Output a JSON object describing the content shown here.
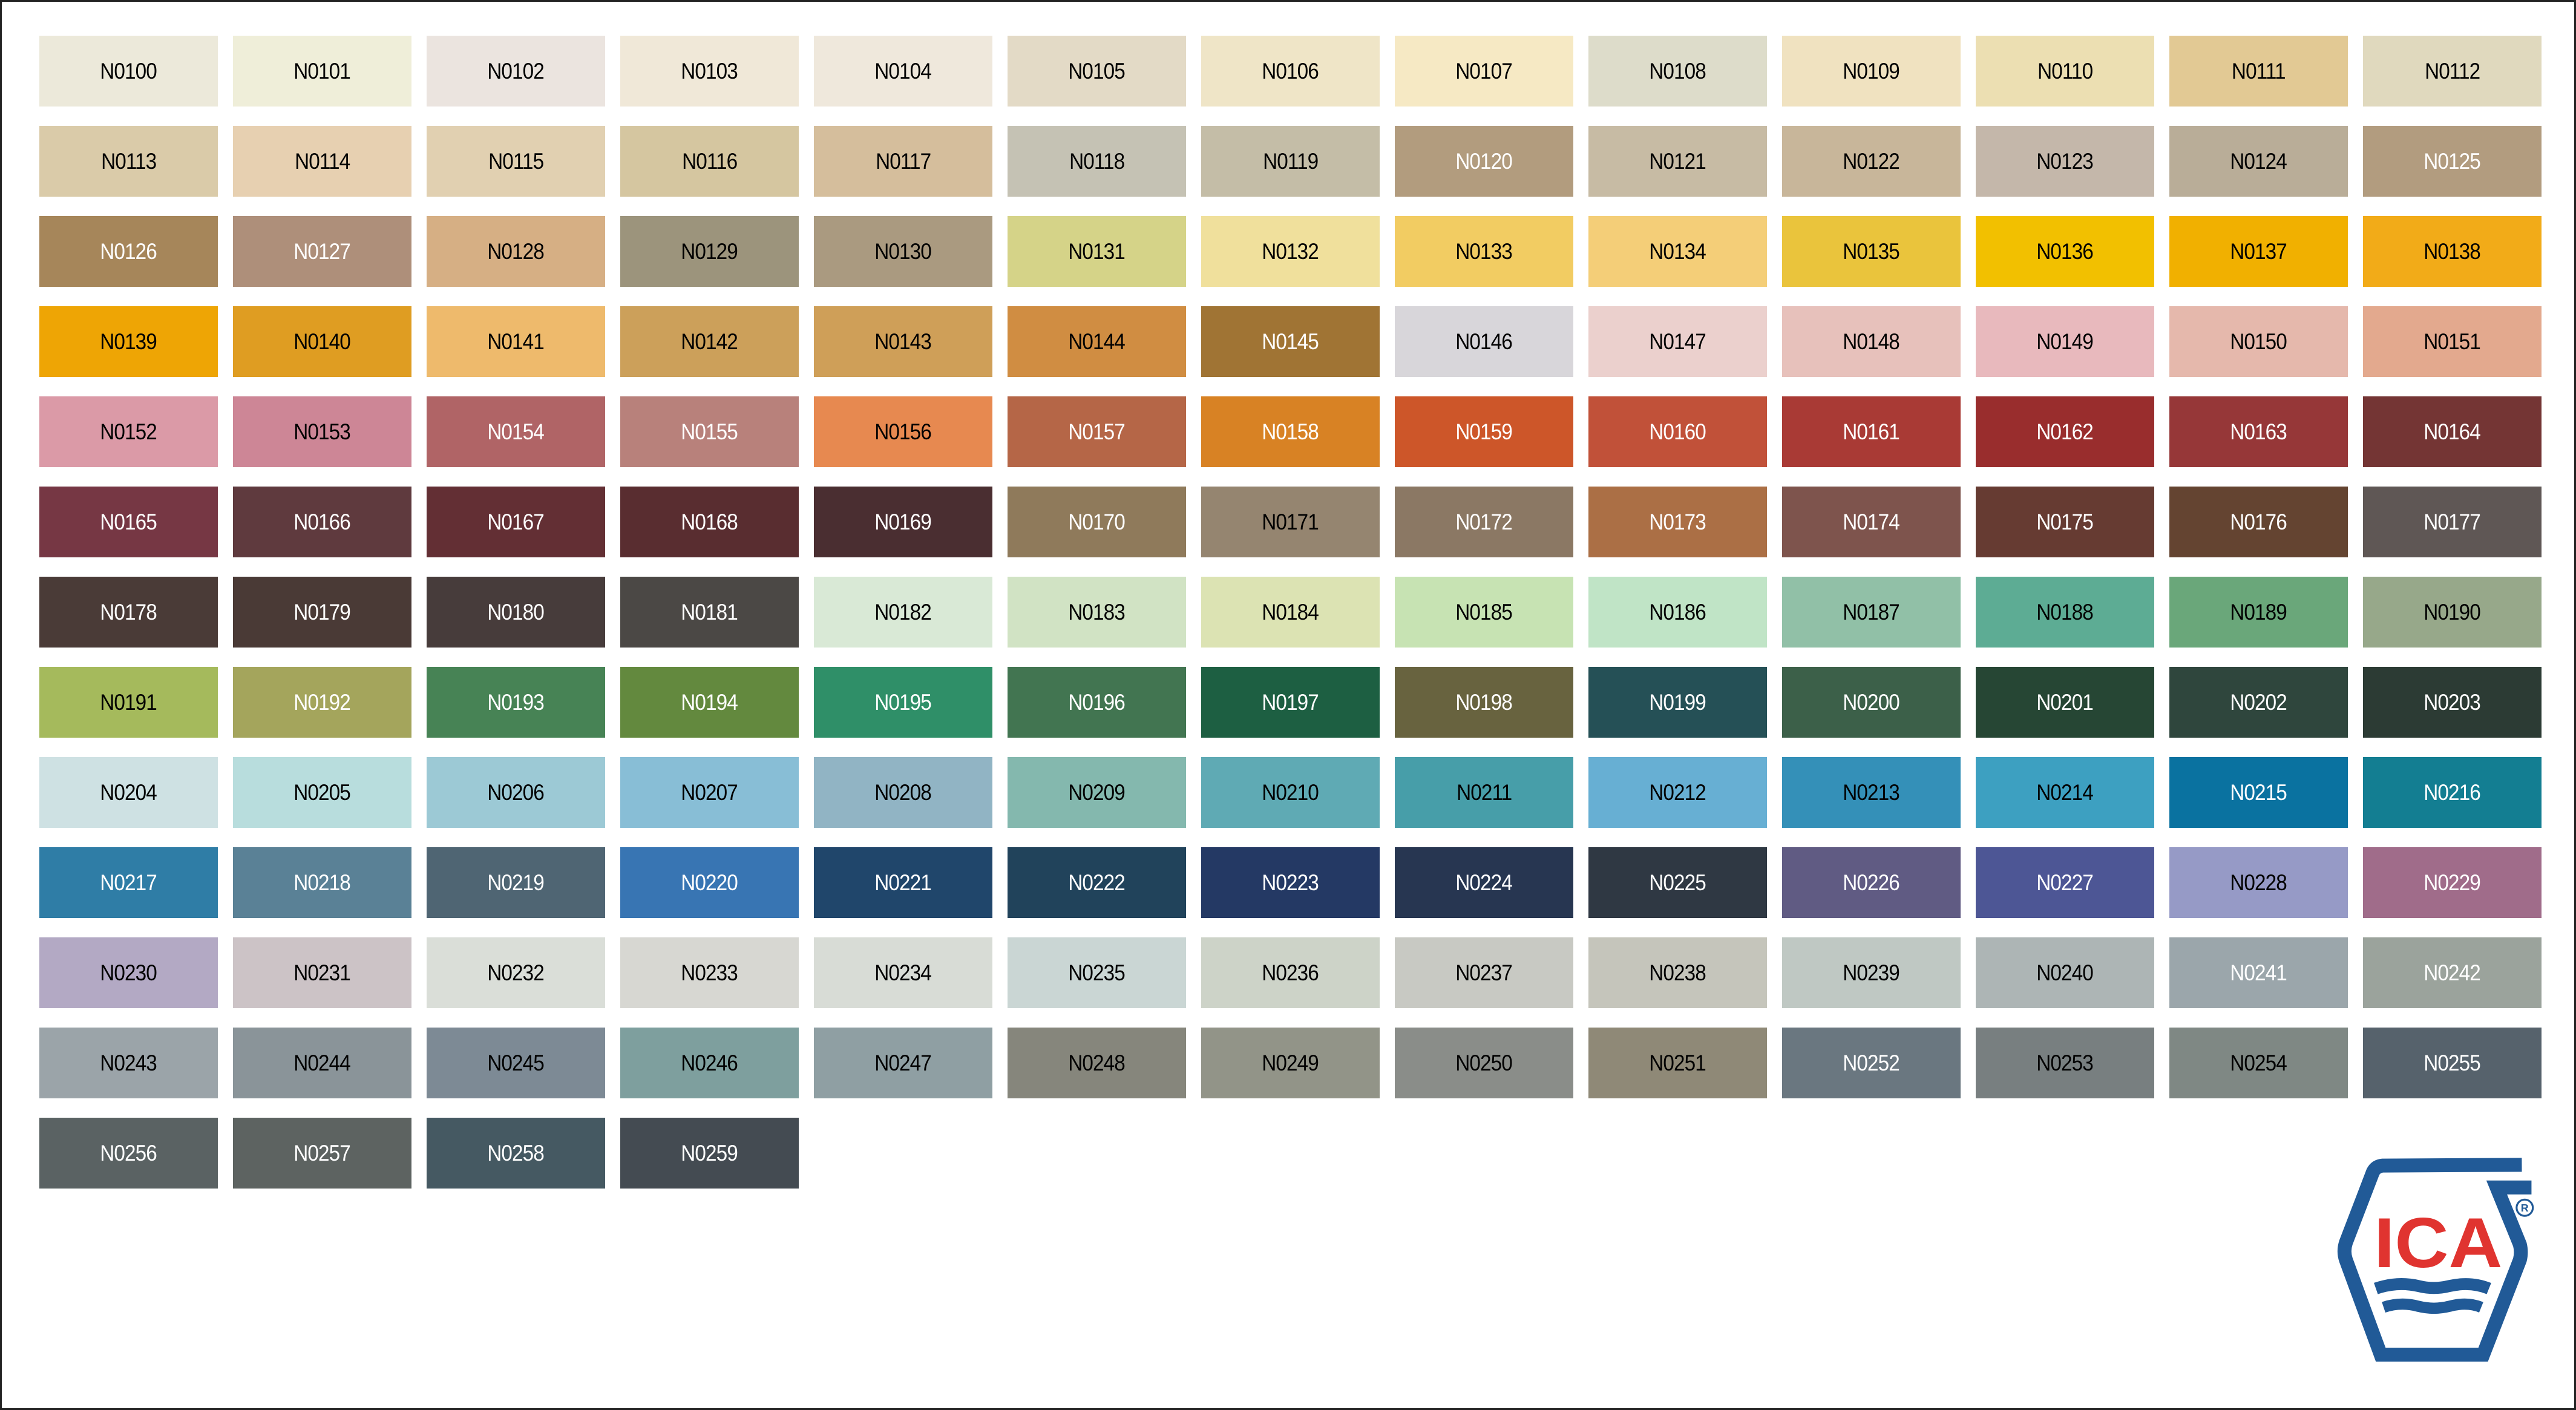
{
  "logo": {
    "text": "ICA",
    "mark": "®",
    "blue": "#215A97",
    "red": "#E03430"
  },
  "swatches": [
    {
      "code": "N0100",
      "color": "#ECE9DA",
      "label": "dark"
    },
    {
      "code": "N0101",
      "color": "#EFEED9",
      "label": "dark"
    },
    {
      "code": "N0102",
      "color": "#EBE4DF",
      "label": "dark"
    },
    {
      "code": "N0103",
      "color": "#F0E8D8",
      "label": "dark"
    },
    {
      "code": "N0104",
      "color": "#EFE8DC",
      "label": "dark"
    },
    {
      "code": "N0105",
      "color": "#E3DAC6",
      "label": "dark"
    },
    {
      "code": "N0106",
      "color": "#EFE5C7",
      "label": "dark"
    },
    {
      "code": "N0107",
      "color": "#F6E9C4",
      "label": "dark"
    },
    {
      "code": "N0108",
      "color": "#DDDCCA",
      "label": "dark"
    },
    {
      "code": "N0109",
      "color": "#F0E2C0",
      "label": "dark"
    },
    {
      "code": "N0110",
      "color": "#ECDFB2",
      "label": "dark"
    },
    {
      "code": "N0111",
      "color": "#E2C994",
      "label": "dark"
    },
    {
      "code": "N0112",
      "color": "#E0D9BE",
      "label": "dark"
    },
    {
      "code": "N0113",
      "color": "#DACBA9",
      "label": "dark"
    },
    {
      "code": "N0114",
      "color": "#E7D0B1",
      "label": "dark"
    },
    {
      "code": "N0115",
      "color": "#E1D0B1",
      "label": "dark"
    },
    {
      "code": "N0116",
      "color": "#D5C6A0",
      "label": "dark"
    },
    {
      "code": "N0117",
      "color": "#D5BE9C",
      "label": "dark"
    },
    {
      "code": "N0118",
      "color": "#C5C2B4",
      "label": "dark"
    },
    {
      "code": "N0119",
      "color": "#C4BDA7",
      "label": "dark"
    },
    {
      "code": "N0120",
      "color": "#B29C7E",
      "label": "light"
    },
    {
      "code": "N0121",
      "color": "#C7BBA4",
      "label": "dark"
    },
    {
      "code": "N0122",
      "color": "#C8B69A",
      "label": "dark"
    },
    {
      "code": "N0123",
      "color": "#C4B7AA",
      "label": "dark"
    },
    {
      "code": "N0124",
      "color": "#B9AD98",
      "label": "dark"
    },
    {
      "code": "N0125",
      "color": "#B29C7F",
      "label": "light"
    },
    {
      "code": "N0126",
      "color": "#A6865A",
      "label": "light"
    },
    {
      "code": "N0127",
      "color": "#AE8F7A",
      "label": "light"
    },
    {
      "code": "N0128",
      "color": "#D6AF84",
      "label": "dark"
    },
    {
      "code": "N0129",
      "color": "#9C947C",
      "label": "dark"
    },
    {
      "code": "N0130",
      "color": "#AA9A80",
      "label": "dark"
    },
    {
      "code": "N0131",
      "color": "#D5D388",
      "label": "dark"
    },
    {
      "code": "N0132",
      "color": "#F0E09C",
      "label": "dark"
    },
    {
      "code": "N0133",
      "color": "#F2CC62",
      "label": "dark"
    },
    {
      "code": "N0134",
      "color": "#F4CE78",
      "label": "dark"
    },
    {
      "code": "N0135",
      "color": "#EAC43C",
      "label": "dark"
    },
    {
      "code": "N0136",
      "color": "#F2C000",
      "label": "dark"
    },
    {
      "code": "N0137",
      "color": "#F1B000",
      "label": "dark"
    },
    {
      "code": "N0138",
      "color": "#F2AB18",
      "label": "dark"
    },
    {
      "code": "N0139",
      "color": "#EEA505",
      "label": "dark"
    },
    {
      "code": "N0140",
      "color": "#DF9D22",
      "label": "dark"
    },
    {
      "code": "N0141",
      "color": "#EEBA6C",
      "label": "dark"
    },
    {
      "code": "N0142",
      "color": "#CCA05A",
      "label": "dark"
    },
    {
      "code": "N0143",
      "color": "#CF9F58",
      "label": "dark"
    },
    {
      "code": "N0144",
      "color": "#D08D42",
      "label": "dark"
    },
    {
      "code": "N0145",
      "color": "#A07434",
      "label": "light"
    },
    {
      "code": "N0146",
      "color": "#D8D6DA",
      "label": "dark"
    },
    {
      "code": "N0147",
      "color": "#EBD0CD",
      "label": "dark"
    },
    {
      "code": "N0148",
      "color": "#E7C1BB",
      "label": "dark"
    },
    {
      "code": "N0149",
      "color": "#E8B9BD",
      "label": "dark"
    },
    {
      "code": "N0150",
      "color": "#E5B8AC",
      "label": "dark"
    },
    {
      "code": "N0151",
      "color": "#E3A98E",
      "label": "dark"
    },
    {
      "code": "N0152",
      "color": "#DB9AA7",
      "label": "dark"
    },
    {
      "code": "N0153",
      "color": "#CD8696",
      "label": "dark"
    },
    {
      "code": "N0154",
      "color": "#B06466",
      "label": "light"
    },
    {
      "code": "N0155",
      "color": "#B8817B",
      "label": "light"
    },
    {
      "code": "N0156",
      "color": "#E78950",
      "label": "dark"
    },
    {
      "code": "N0157",
      "color": "#B56647",
      "label": "light"
    },
    {
      "code": "N0158",
      "color": "#D88224",
      "label": "light"
    },
    {
      "code": "N0159",
      "color": "#CD5629",
      "label": "light"
    },
    {
      "code": "N0160",
      "color": "#C15139",
      "label": "light"
    },
    {
      "code": "N0161",
      "color": "#A93A35",
      "label": "light"
    },
    {
      "code": "N0162",
      "color": "#992D2D",
      "label": "light"
    },
    {
      "code": "N0163",
      "color": "#963738",
      "label": "light"
    },
    {
      "code": "N0164",
      "color": "#743534",
      "label": "light"
    },
    {
      "code": "N0165",
      "color": "#763744",
      "label": "light"
    },
    {
      "code": "N0166",
      "color": "#5F3A3E",
      "label": "light"
    },
    {
      "code": "N0167",
      "color": "#632F34",
      "label": "light"
    },
    {
      "code": "N0168",
      "color": "#592D30",
      "label": "light"
    },
    {
      "code": "N0169",
      "color": "#4A2E31",
      "label": "light"
    },
    {
      "code": "N0170",
      "color": "#8F7A5B",
      "label": "light"
    },
    {
      "code": "N0171",
      "color": "#958570",
      "label": "dark"
    },
    {
      "code": "N0172",
      "color": "#8B7864",
      "label": "light"
    },
    {
      "code": "N0173",
      "color": "#AB6F45",
      "label": "light"
    },
    {
      "code": "N0174",
      "color": "#7E544D",
      "label": "light"
    },
    {
      "code": "N0175",
      "color": "#663B32",
      "label": "light"
    },
    {
      "code": "N0176",
      "color": "#644431",
      "label": "light"
    },
    {
      "code": "N0177",
      "color": "#5F5755",
      "label": "light"
    },
    {
      "code": "N0178",
      "color": "#4A3B37",
      "label": "light"
    },
    {
      "code": "N0179",
      "color": "#4A3A36",
      "label": "light"
    },
    {
      "code": "N0180",
      "color": "#473C3B",
      "label": "light"
    },
    {
      "code": "N0181",
      "color": "#4B4845",
      "label": "light"
    },
    {
      "code": "N0182",
      "color": "#D9E9D6",
      "label": "dark"
    },
    {
      "code": "N0183",
      "color": "#D1E3C4",
      "label": "dark"
    },
    {
      "code": "N0184",
      "color": "#DCE3B3",
      "label": "dark"
    },
    {
      "code": "N0185",
      "color": "#C7E3B3",
      "label": "dark"
    },
    {
      "code": "N0186",
      "color": "#C0E4C6",
      "label": "dark"
    },
    {
      "code": "N0187",
      "color": "#91C0A7",
      "label": "dark"
    },
    {
      "code": "N0188",
      "color": "#5DAC94",
      "label": "dark"
    },
    {
      "code": "N0189",
      "color": "#6AA77A",
      "label": "dark"
    },
    {
      "code": "N0190",
      "color": "#97A88A",
      "label": "dark"
    },
    {
      "code": "N0191",
      "color": "#A5BA5C",
      "label": "dark"
    },
    {
      "code": "N0192",
      "color": "#A4A55C",
      "label": "light"
    },
    {
      "code": "N0193",
      "color": "#478355",
      "label": "light"
    },
    {
      "code": "N0194",
      "color": "#63893E",
      "label": "light"
    },
    {
      "code": "N0195",
      "color": "#2F8F68",
      "label": "light"
    },
    {
      "code": "N0196",
      "color": "#427551",
      "label": "light"
    },
    {
      "code": "N0197",
      "color": "#1D5F42",
      "label": "light"
    },
    {
      "code": "N0198",
      "color": "#68633F",
      "label": "light"
    },
    {
      "code": "N0199",
      "color": "#255056",
      "label": "light"
    },
    {
      "code": "N0200",
      "color": "#3C6049",
      "label": "light"
    },
    {
      "code": "N0201",
      "color": "#264634",
      "label": "light"
    },
    {
      "code": "N0202",
      "color": "#2F463D",
      "label": "light"
    },
    {
      "code": "N0203",
      "color": "#2C3B34",
      "label": "light"
    },
    {
      "code": "N0204",
      "color": "#CEE1E3",
      "label": "dark"
    },
    {
      "code": "N0205",
      "color": "#B8DDDD",
      "label": "dark"
    },
    {
      "code": "N0206",
      "color": "#9CC9D5",
      "label": "dark"
    },
    {
      "code": "N0207",
      "color": "#88BED6",
      "label": "dark"
    },
    {
      "code": "N0208",
      "color": "#91B4C4",
      "label": "dark"
    },
    {
      "code": "N0209",
      "color": "#84B8AE",
      "label": "dark"
    },
    {
      "code": "N0210",
      "color": "#5FAAB4",
      "label": "dark"
    },
    {
      "code": "N0211",
      "color": "#479EA9",
      "label": "dark"
    },
    {
      "code": "N0212",
      "color": "#67AFD3",
      "label": "dark"
    },
    {
      "code": "N0213",
      "color": "#3490B8",
      "label": "dark"
    },
    {
      "code": "N0214",
      "color": "#3DA0C1",
      "label": "dark"
    },
    {
      "code": "N0215",
      "color": "#0A72A0",
      "label": "light"
    },
    {
      "code": "N0216",
      "color": "#137E92",
      "label": "light"
    },
    {
      "code": "N0217",
      "color": "#2F7DA6",
      "label": "light"
    },
    {
      "code": "N0218",
      "color": "#5A8196",
      "label": "light"
    },
    {
      "code": "N0219",
      "color": "#4F6573",
      "label": "light"
    },
    {
      "code": "N0220",
      "color": "#3875B3",
      "label": "light"
    },
    {
      "code": "N0221",
      "color": "#20466B",
      "label": "light"
    },
    {
      "code": "N0222",
      "color": "#21435B",
      "label": "light"
    },
    {
      "code": "N0223",
      "color": "#243964",
      "label": "light"
    },
    {
      "code": "N0224",
      "color": "#273651",
      "label": "light"
    },
    {
      "code": "N0225",
      "color": "#2F3843",
      "label": "light"
    },
    {
      "code": "N0226",
      "color": "#605B83",
      "label": "light"
    },
    {
      "code": "N0227",
      "color": "#4D5695",
      "label": "light"
    },
    {
      "code": "N0228",
      "color": "#969AC6",
      "label": "dark"
    },
    {
      "code": "N0229",
      "color": "#A06C8A",
      "label": "light"
    },
    {
      "code": "N0230",
      "color": "#B3A9C4",
      "label": "dark"
    },
    {
      "code": "N0231",
      "color": "#CCC3C6",
      "label": "dark"
    },
    {
      "code": "N0232",
      "color": "#DADED8",
      "label": "dark"
    },
    {
      "code": "N0233",
      "color": "#D7D7D2",
      "label": "dark"
    },
    {
      "code": "N0234",
      "color": "#D8DCD6",
      "label": "dark"
    },
    {
      "code": "N0235",
      "color": "#CAD6D4",
      "label": "dark"
    },
    {
      "code": "N0236",
      "color": "#CDD3C8",
      "label": "dark"
    },
    {
      "code": "N0237",
      "color": "#C8C9C3",
      "label": "dark"
    },
    {
      "code": "N0238",
      "color": "#C5C5BB",
      "label": "dark"
    },
    {
      "code": "N0239",
      "color": "#BFC8C3",
      "label": "dark"
    },
    {
      "code": "N0240",
      "color": "#ADB5B5",
      "label": "dark"
    },
    {
      "code": "N0241",
      "color": "#9BA6AB",
      "label": "light"
    },
    {
      "code": "N0242",
      "color": "#9BA39C",
      "label": "light"
    },
    {
      "code": "N0243",
      "color": "#9BA4A9",
      "label": "dark"
    },
    {
      "code": "N0244",
      "color": "#8A9499",
      "label": "dark"
    },
    {
      "code": "N0245",
      "color": "#7D8A95",
      "label": "dark"
    },
    {
      "code": "N0246",
      "color": "#7E9F9E",
      "label": "dark"
    },
    {
      "code": "N0247",
      "color": "#8F9FA3",
      "label": "dark"
    },
    {
      "code": "N0248",
      "color": "#86867C",
      "label": "dark"
    },
    {
      "code": "N0249",
      "color": "#929488",
      "label": "dark"
    },
    {
      "code": "N0250",
      "color": "#8A8D89",
      "label": "dark"
    },
    {
      "code": "N0251",
      "color": "#8F8977",
      "label": "dark"
    },
    {
      "code": "N0252",
      "color": "#6A7780",
      "label": "light"
    },
    {
      "code": "N0253",
      "color": "#787F80",
      "label": "dark"
    },
    {
      "code": "N0254",
      "color": "#7F8884",
      "label": "dark"
    },
    {
      "code": "N0255",
      "color": "#56626C",
      "label": "light"
    },
    {
      "code": "N0256",
      "color": "#5A6263",
      "label": "light"
    },
    {
      "code": "N0257",
      "color": "#5D6361",
      "label": "light"
    },
    {
      "code": "N0258",
      "color": "#455962",
      "label": "light"
    },
    {
      "code": "N0259",
      "color": "#444B52",
      "label": "light"
    }
  ]
}
